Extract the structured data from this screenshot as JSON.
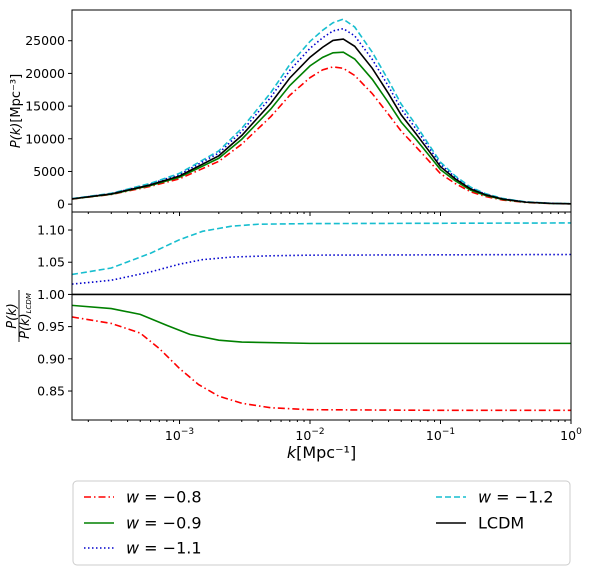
{
  "chart_data": {
    "type": "line",
    "x_scale": "log",
    "xlim": [
      0.00015,
      1.0
    ],
    "xlabel": "k[Mpc⁻¹]",
    "x_ticks": [
      {
        "value": 0.001,
        "base": "10",
        "exp": "−3"
      },
      {
        "value": 0.01,
        "base": "10",
        "exp": "−2"
      },
      {
        "value": 0.1,
        "base": "10",
        "exp": "−1"
      },
      {
        "value": 1.0,
        "base": "10",
        "exp": "0"
      }
    ],
    "panels": [
      {
        "id": "power-spectrum",
        "ylabel": "P(k)[Mpc⁻³]",
        "ylim": [
          -1200,
          29700
        ],
        "y_ticks": [
          0,
          5000,
          10000,
          15000,
          20000,
          25000
        ],
        "series": [
          {
            "name": "w = −0.8",
            "color": "#ff0000",
            "dash": "dashdot",
            "points": [
              [
                0.00015,
                780
              ],
              [
                0.0003,
                1480
              ],
              [
                0.0006,
                2720
              ],
              [
                0.001,
                3880
              ],
              [
                0.002,
                6550
              ],
              [
                0.003,
                9180
              ],
              [
                0.005,
                13380
              ],
              [
                0.007,
                16660
              ],
              [
                0.01,
                19350
              ],
              [
                0.0125,
                20550
              ],
              [
                0.015,
                21000
              ],
              [
                0.018,
                20780
              ],
              [
                0.022,
                19690
              ],
              [
                0.03,
                16910
              ],
              [
                0.04,
                13720
              ],
              [
                0.05,
                11160
              ],
              [
                0.065,
                8760
              ],
              [
                0.08,
                6790
              ],
              [
                0.1,
                4660
              ],
              [
                0.13,
                3140
              ],
              [
                0.17,
                1900
              ],
              [
                0.22,
                1180
              ],
              [
                0.3,
                630
              ],
              [
                0.45,
                250
              ],
              [
                0.7,
                100
              ],
              [
                1.0,
                40
              ]
            ]
          },
          {
            "name": "w = −0.9",
            "color": "#008000",
            "dash": "solid",
            "points": [
              [
                0.00015,
                790
              ],
              [
                0.0003,
                1520
              ],
              [
                0.0006,
                2850
              ],
              [
                0.001,
                4120
              ],
              [
                0.002,
                7020
              ],
              [
                0.003,
                9930
              ],
              [
                0.005,
                14540
              ],
              [
                0.007,
                18150
              ],
              [
                0.01,
                21150
              ],
              [
                0.0125,
                22450
              ],
              [
                0.015,
                23150
              ],
              [
                0.018,
                23250
              ],
              [
                0.022,
                22200
              ],
              [
                0.03,
                19100
              ],
              [
                0.04,
                15500
              ],
              [
                0.05,
                12550
              ],
              [
                0.065,
                9900
              ],
              [
                0.08,
                7700
              ],
              [
                0.1,
                5280
              ],
              [
                0.13,
                3560
              ],
              [
                0.17,
                2150
              ],
              [
                0.22,
                1340
              ],
              [
                0.3,
                720
              ],
              [
                0.45,
                290
              ],
              [
                0.7,
                110
              ],
              [
                1.0,
                50
              ]
            ]
          },
          {
            "name": "w = −1.1",
            "color": "#0000cc",
            "dash": "dotted",
            "points": [
              [
                0.00015,
                820
              ],
              [
                0.0003,
                1610
              ],
              [
                0.0006,
                3080
              ],
              [
                0.001,
                4540
              ],
              [
                0.002,
                7820
              ],
              [
                0.003,
                11130
              ],
              [
                0.005,
                16340
              ],
              [
                0.007,
                20460
              ],
              [
                0.01,
                23830
              ],
              [
                0.0125,
                25450
              ],
              [
                0.015,
                26500
              ],
              [
                0.018,
                26850
              ],
              [
                0.022,
                25750
              ],
              [
                0.03,
                22150
              ],
              [
                0.04,
                18000
              ],
              [
                0.05,
                14550
              ],
              [
                0.065,
                11500
              ],
              [
                0.08,
                8900
              ],
              [
                0.1,
                6100
              ],
              [
                0.13,
                4100
              ],
              [
                0.17,
                2480
              ],
              [
                0.22,
                1550
              ],
              [
                0.3,
                830
              ],
              [
                0.45,
                330
              ],
              [
                0.7,
                130
              ],
              [
                1.0,
                55
              ]
            ]
          },
          {
            "name": "w = −1.2",
            "color": "#17becf",
            "dash": "dashed",
            "points": [
              [
                0.00015,
                840
              ],
              [
                0.0003,
                1660
              ],
              [
                0.0006,
                3190
              ],
              [
                0.001,
                4720
              ],
              [
                0.002,
                8150
              ],
              [
                0.003,
                11600
              ],
              [
                0.005,
                17040
              ],
              [
                0.007,
                21360
              ],
              [
                0.01,
                24900
              ],
              [
                0.0125,
                26600
              ],
              [
                0.015,
                27750
              ],
              [
                0.018,
                28300
              ],
              [
                0.022,
                27100
              ],
              [
                0.03,
                23250
              ],
              [
                0.04,
                18900
              ],
              [
                0.05,
                15300
              ],
              [
                0.065,
                12100
              ],
              [
                0.08,
                9350
              ],
              [
                0.1,
                6420
              ],
              [
                0.13,
                4300
              ],
              [
                0.17,
                2600
              ],
              [
                0.22,
                1620
              ],
              [
                0.3,
                870
              ],
              [
                0.45,
                350
              ],
              [
                0.7,
                135
              ],
              [
                1.0,
                60
              ]
            ]
          },
          {
            "name": "LCDM",
            "color": "#000000",
            "dash": "solid",
            "points": [
              [
                0.00015,
                805
              ],
              [
                0.0003,
                1560
              ],
              [
                0.0006,
                2960
              ],
              [
                0.001,
                4310
              ],
              [
                0.002,
                7400
              ],
              [
                0.003,
                10500
              ],
              [
                0.005,
                15420
              ],
              [
                0.007,
                19300
              ],
              [
                0.01,
                22480
              ],
              [
                0.0125,
                24000
              ],
              [
                0.015,
                25050
              ],
              [
                0.018,
                25250
              ],
              [
                0.022,
                24150
              ],
              [
                0.03,
                20780
              ],
              [
                0.04,
                16900
              ],
              [
                0.05,
                13650
              ],
              [
                0.065,
                10750
              ],
              [
                0.08,
                8350
              ],
              [
                0.1,
                5730
              ],
              [
                0.13,
                3860
              ],
              [
                0.17,
                2340
              ],
              [
                0.22,
                1460
              ],
              [
                0.3,
                780
              ],
              [
                0.45,
                310
              ],
              [
                0.7,
                120
              ],
              [
                1.0,
                52
              ]
            ]
          }
        ]
      },
      {
        "id": "ratio",
        "ylabel_num": "P(k)",
        "ylabel_den": "P(k)",
        "ylabel_den_sub": "LCDM",
        "ylim": [
          0.805,
          1.128
        ],
        "y_ticks": [
          0.85,
          0.9,
          0.95,
          1.0,
          1.05,
          1.1
        ],
        "series": [
          {
            "name": "w = −0.8",
            "color": "#ff0000",
            "dash": "dashdot",
            "points": [
              [
                0.00015,
                0.965
              ],
              [
                0.0003,
                0.955
              ],
              [
                0.0005,
                0.94
              ],
              [
                0.0007,
                0.916
              ],
              [
                0.001,
                0.885
              ],
              [
                0.0014,
                0.86
              ],
              [
                0.002,
                0.842
              ],
              [
                0.003,
                0.831
              ],
              [
                0.005,
                0.824
              ],
              [
                0.01,
                0.821
              ],
              [
                0.1,
                0.82
              ],
              [
                1.0,
                0.82
              ]
            ]
          },
          {
            "name": "w = −0.9",
            "color": "#008000",
            "dash": "solid",
            "points": [
              [
                0.00015,
                0.983
              ],
              [
                0.0003,
                0.978
              ],
              [
                0.0005,
                0.969
              ],
              [
                0.0008,
                0.952
              ],
              [
                0.0012,
                0.938
              ],
              [
                0.002,
                0.929
              ],
              [
                0.003,
                0.926
              ],
              [
                0.01,
                0.924
              ],
              [
                1.0,
                0.924
              ]
            ]
          },
          {
            "name": "w = −1.1",
            "color": "#0000cc",
            "dash": "dotted",
            "points": [
              [
                0.00015,
                1.016
              ],
              [
                0.0003,
                1.022
              ],
              [
                0.0006,
                1.035
              ],
              [
                0.001,
                1.047
              ],
              [
                0.0015,
                1.054
              ],
              [
                0.0025,
                1.058
              ],
              [
                0.005,
                1.06
              ],
              [
                0.01,
                1.061
              ],
              [
                1.0,
                1.062
              ]
            ]
          },
          {
            "name": "w = −1.2",
            "color": "#17becf",
            "dash": "dashed",
            "points": [
              [
                0.00015,
                1.031
              ],
              [
                0.0003,
                1.041
              ],
              [
                0.0006,
                1.064
              ],
              [
                0.001,
                1.085
              ],
              [
                0.0015,
                1.098
              ],
              [
                0.0025,
                1.106
              ],
              [
                0.004,
                1.109
              ],
              [
                0.01,
                1.11
              ],
              [
                1.0,
                1.111
              ]
            ]
          },
          {
            "name": "LCDM",
            "color": "#000000",
            "dash": "solid",
            "points": [
              [
                0.00015,
                1.0
              ],
              [
                1.0,
                1.0
              ]
            ]
          }
        ]
      }
    ],
    "legend": {
      "placement": "bottom",
      "entries": [
        {
          "label": "w = −0.8",
          "color": "#ff0000",
          "dash": "dashdot"
        },
        {
          "label": "w = −0.9",
          "color": "#008000",
          "dash": "solid"
        },
        {
          "label": "w = −1.1",
          "color": "#0000cc",
          "dash": "dotted"
        },
        {
          "label": "w = −1.2",
          "color": "#17becf",
          "dash": "dashed"
        },
        {
          "label": "LCDM",
          "color": "#000000",
          "dash": "solid"
        }
      ]
    }
  }
}
